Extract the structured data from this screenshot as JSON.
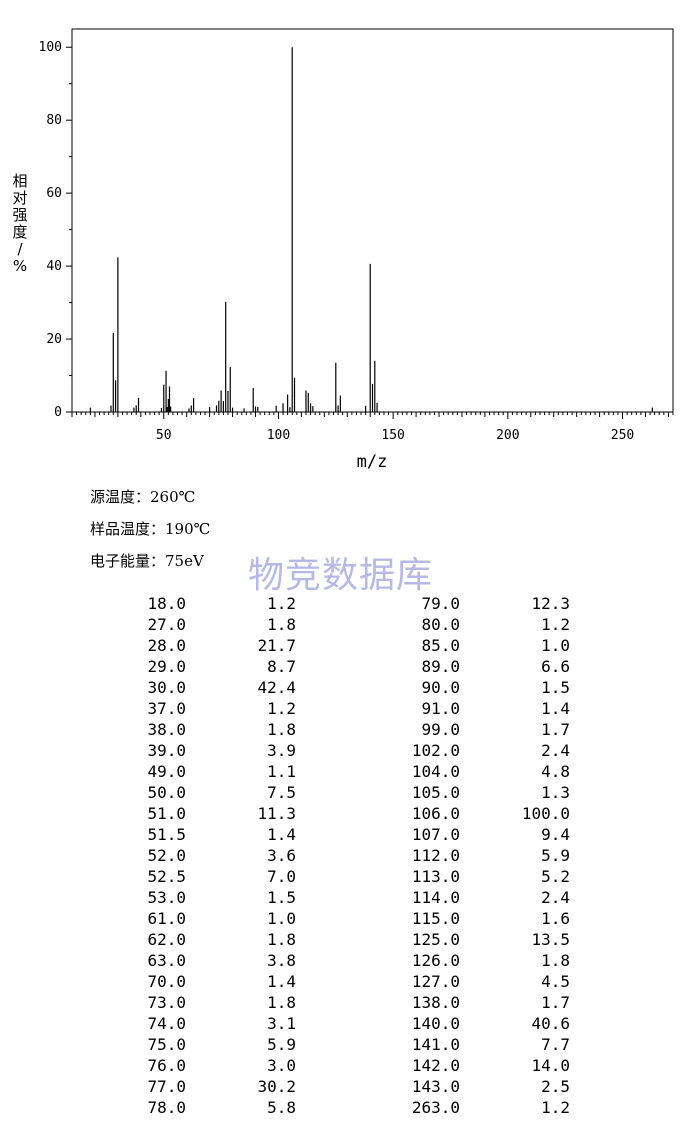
{
  "chart_data": {
    "type": "bar",
    "xlabel": "m/z",
    "ylabel": "相对强度/%",
    "xlim": [
      10,
      272
    ],
    "ylim": [
      0,
      105
    ],
    "xticks": [
      50,
      100,
      150,
      200,
      250
    ],
    "yticks": [
      0,
      20,
      40,
      60,
      80,
      100
    ],
    "peaks": [
      [
        18.0,
        1.2
      ],
      [
        27.0,
        1.8
      ],
      [
        28.0,
        21.7
      ],
      [
        29.0,
        8.7
      ],
      [
        30.0,
        42.4
      ],
      [
        37.0,
        1.2
      ],
      [
        38.0,
        1.8
      ],
      [
        39.0,
        3.9
      ],
      [
        49.0,
        1.1
      ],
      [
        50.0,
        7.5
      ],
      [
        51.0,
        11.3
      ],
      [
        51.5,
        1.4
      ],
      [
        52.0,
        3.6
      ],
      [
        52.5,
        7.0
      ],
      [
        53.0,
        1.5
      ],
      [
        61.0,
        1.0
      ],
      [
        62.0,
        1.8
      ],
      [
        63.0,
        3.8
      ],
      [
        70.0,
        1.4
      ],
      [
        73.0,
        1.8
      ],
      [
        74.0,
        3.1
      ],
      [
        75.0,
        5.9
      ],
      [
        76.0,
        3.0
      ],
      [
        77.0,
        30.2
      ],
      [
        78.0,
        5.8
      ],
      [
        79.0,
        12.3
      ],
      [
        80.0,
        1.2
      ],
      [
        85.0,
        1.0
      ],
      [
        89.0,
        6.6
      ],
      [
        90.0,
        1.5
      ],
      [
        91.0,
        1.4
      ],
      [
        99.0,
        1.7
      ],
      [
        102.0,
        2.4
      ],
      [
        104.0,
        4.8
      ],
      [
        105.0,
        1.3
      ],
      [
        106.0,
        100.0
      ],
      [
        107.0,
        9.4
      ],
      [
        112.0,
        5.9
      ],
      [
        113.0,
        5.2
      ],
      [
        114.0,
        2.4
      ],
      [
        115.0,
        1.6
      ],
      [
        125.0,
        13.5
      ],
      [
        126.0,
        1.8
      ],
      [
        127.0,
        4.5
      ],
      [
        138.0,
        1.7
      ],
      [
        140.0,
        40.6
      ],
      [
        141.0,
        7.7
      ],
      [
        142.0,
        14.0
      ],
      [
        143.0,
        2.5
      ],
      [
        263.0,
        1.2
      ]
    ]
  },
  "info": {
    "source_temp": "源温度：260℃",
    "sample_temp": "样品温度：190℃",
    "electron_energy": "电子能量：75eV"
  },
  "watermark": "物竞数据库",
  "table": {
    "left": [
      [
        "18.0",
        "1.2"
      ],
      [
        "27.0",
        "1.8"
      ],
      [
        "28.0",
        "21.7"
      ],
      [
        "29.0",
        "8.7"
      ],
      [
        "30.0",
        "42.4"
      ],
      [
        "37.0",
        "1.2"
      ],
      [
        "38.0",
        "1.8"
      ],
      [
        "39.0",
        "3.9"
      ],
      [
        "49.0",
        "1.1"
      ],
      [
        "50.0",
        "7.5"
      ],
      [
        "51.0",
        "11.3"
      ],
      [
        "51.5",
        "1.4"
      ],
      [
        "52.0",
        "3.6"
      ],
      [
        "52.5",
        "7.0"
      ],
      [
        "53.0",
        "1.5"
      ],
      [
        "61.0",
        "1.0"
      ],
      [
        "62.0",
        "1.8"
      ],
      [
        "63.0",
        "3.8"
      ],
      [
        "70.0",
        "1.4"
      ],
      [
        "73.0",
        "1.8"
      ],
      [
        "74.0",
        "3.1"
      ],
      [
        "75.0",
        "5.9"
      ],
      [
        "76.0",
        "3.0"
      ],
      [
        "77.0",
        "30.2"
      ],
      [
        "78.0",
        "5.8"
      ]
    ],
    "right": [
      [
        "79.0",
        "12.3"
      ],
      [
        "80.0",
        "1.2"
      ],
      [
        "85.0",
        "1.0"
      ],
      [
        "89.0",
        "6.6"
      ],
      [
        "90.0",
        "1.5"
      ],
      [
        "91.0",
        "1.4"
      ],
      [
        "99.0",
        "1.7"
      ],
      [
        "102.0",
        "2.4"
      ],
      [
        "104.0",
        "4.8"
      ],
      [
        "105.0",
        "1.3"
      ],
      [
        "106.0",
        "100.0"
      ],
      [
        "107.0",
        "9.4"
      ],
      [
        "112.0",
        "5.9"
      ],
      [
        "113.0",
        "5.2"
      ],
      [
        "114.0",
        "2.4"
      ],
      [
        "115.0",
        "1.6"
      ],
      [
        "125.0",
        "13.5"
      ],
      [
        "126.0",
        "1.8"
      ],
      [
        "127.0",
        "4.5"
      ],
      [
        "138.0",
        "1.7"
      ],
      [
        "140.0",
        "40.6"
      ],
      [
        "141.0",
        "7.7"
      ],
      [
        "142.0",
        "14.0"
      ],
      [
        "143.0",
        "2.5"
      ],
      [
        "263.0",
        "1.2"
      ]
    ]
  }
}
